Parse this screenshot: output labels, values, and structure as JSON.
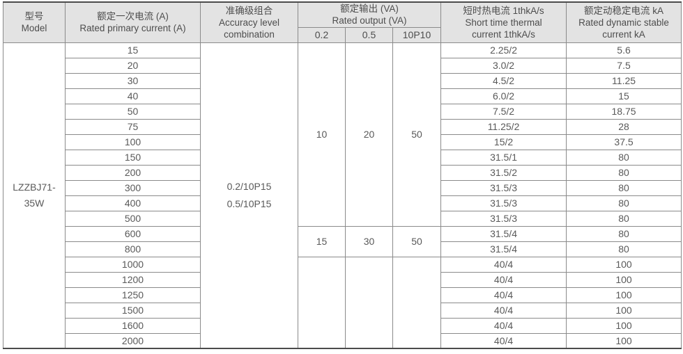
{
  "table": {
    "headers": {
      "model": [
        "型号",
        "Model"
      ],
      "primary_current": [
        "额定一次电流 (A)",
        "Rated primary current (A)"
      ],
      "accuracy": [
        "准确级组合",
        "Accuracy level",
        "combination"
      ],
      "output": [
        "额定输出 (VA)",
        "Rated output (VA)"
      ],
      "output_sub": [
        "0.2",
        "0.5",
        "10P10"
      ],
      "thermal": [
        "短时热电流 1thkA/s",
        "Short time thermal",
        "current 1thkA/s"
      ],
      "dynamic": [
        "额定动稳定电流 kA",
        "Rated dynamic stable",
        "current kA"
      ]
    },
    "model_lines": [
      "LZZBJ71-",
      "35W"
    ],
    "accuracy_lines": [
      "0.2/10P15",
      "0.5/10P15"
    ],
    "output_groups": [
      {
        "span": 12,
        "values": [
          "10",
          "20",
          "50"
        ]
      },
      {
        "span": 2,
        "values": [
          "15",
          "30",
          "50"
        ]
      },
      {
        "span": 6,
        "values": [
          "",
          "",
          ""
        ]
      }
    ],
    "rows": [
      {
        "current": "15",
        "thermal": "2.25/2",
        "dynamic": "5.6"
      },
      {
        "current": "20",
        "thermal": "3.0/2",
        "dynamic": "7.5"
      },
      {
        "current": "30",
        "thermal": "4.5/2",
        "dynamic": "11.25"
      },
      {
        "current": "40",
        "thermal": "6.0/2",
        "dynamic": "15"
      },
      {
        "current": "50",
        "thermal": "7.5/2",
        "dynamic": "18.75"
      },
      {
        "current": "75",
        "thermal": "11.25/2",
        "dynamic": "28"
      },
      {
        "current": "100",
        "thermal": "15/2",
        "dynamic": "37.5"
      },
      {
        "current": "150",
        "thermal": "31.5/1",
        "dynamic": "80"
      },
      {
        "current": "200",
        "thermal": "31.5/2",
        "dynamic": "80"
      },
      {
        "current": "300",
        "thermal": "31.5/3",
        "dynamic": "80"
      },
      {
        "current": "400",
        "thermal": "31.5/3",
        "dynamic": "80"
      },
      {
        "current": "500",
        "thermal": "31.5/3",
        "dynamic": "80"
      },
      {
        "current": "600",
        "thermal": "31.5/4",
        "dynamic": "80"
      },
      {
        "current": "800",
        "thermal": "31.5/4",
        "dynamic": "80"
      },
      {
        "current": "1000",
        "thermal": "40/4",
        "dynamic": "100"
      },
      {
        "current": "1200",
        "thermal": "40/4",
        "dynamic": "100"
      },
      {
        "current": "1250",
        "thermal": "40/4",
        "dynamic": "100"
      },
      {
        "current": "1500",
        "thermal": "40/4",
        "dynamic": "100"
      },
      {
        "current": "1600",
        "thermal": "40/4",
        "dynamic": "100"
      },
      {
        "current": "2000",
        "thermal": "40/4",
        "dynamic": "100"
      }
    ]
  },
  "colors": {
    "header_bg": "#e3e3e3",
    "border": "#8a8a8a",
    "border_heavy": "#4a4a4a",
    "text": "#595959"
  }
}
